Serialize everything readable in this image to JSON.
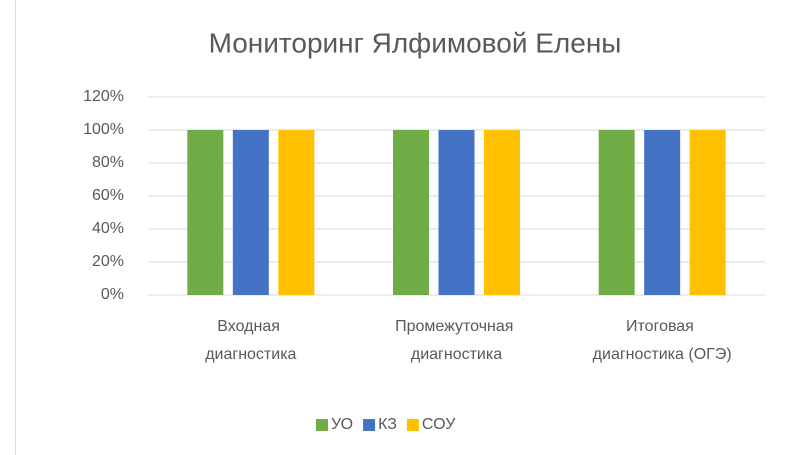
{
  "chart_data": {
    "type": "bar",
    "title": "Мониторинг Ялфимовой Елены",
    "categories": [
      "Входная диагностика",
      "Промежуточная диагностика",
      "Итоговая диагностика (ОГЭ)"
    ],
    "series": [
      {
        "name": "УО",
        "color": "#70ad47",
        "values": [
          100,
          100,
          100
        ]
      },
      {
        "name": "КЗ",
        "color": "#4472c4",
        "values": [
          100,
          100,
          100
        ]
      },
      {
        "name": "СОУ",
        "color": "#ffc000",
        "values": [
          100,
          100,
          100
        ]
      }
    ],
    "ylim": [
      0,
      120
    ],
    "yticks": [
      {
        "value": 0,
        "label": "0%"
      },
      {
        "value": 20,
        "label": "20%"
      },
      {
        "value": 40,
        "label": "40%"
      },
      {
        "value": 60,
        "label": "60%"
      },
      {
        "value": 80,
        "label": "80%"
      },
      {
        "value": 100,
        "label": "100%"
      },
      {
        "value": 120,
        "label": "120%"
      }
    ],
    "grid": true,
    "legend": "bottom"
  }
}
